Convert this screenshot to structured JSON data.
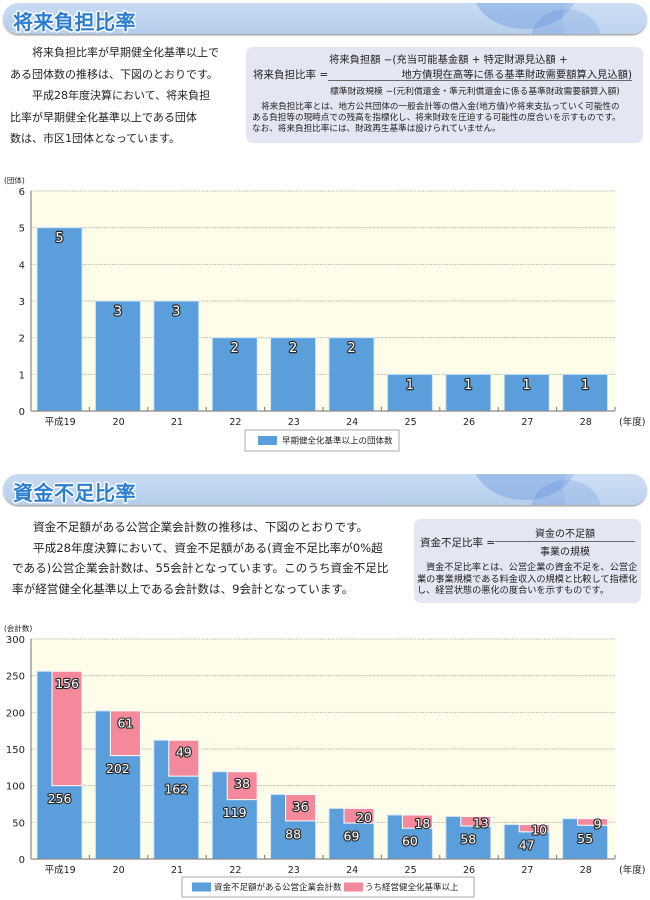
{
  "colors": {
    "title_text": "#2b7dcf",
    "band": "#bcd2ef",
    "formula_box": "#e4e6f4",
    "bar_blue": "#5a9fdb",
    "bar_pink": "#f5899c",
    "plot_bg": "#fefde9"
  },
  "sections": [
    {
      "title": "将来負担比率",
      "paragraphs": [
        {
          "lines": [
            "将来負担比率が早期健全化基準以上で",
            "ある団体数の推移は、下図のとおりです。"
          ]
        },
        {
          "lines": [
            "平成28年度決算において、将来負担",
            "比率が早期健全化基準以上である団体",
            "数は、市区1団体となっています。"
          ]
        }
      ],
      "formula": {
        "label": "将来負担比率 =",
        "numerator": [
          "将来負担額 −(充当可能基金額 + 特定財源見込額 +",
          "地方債現在高等に係る基準財政需要額算入見込額)"
        ],
        "denominator": "標準財政規模 −(元利償還金・準元利償還金に係る基準財政需要額算入額)",
        "note": [
          "将来負担比率とは、地方公共団体の一般会計等の借入金(地方債)や将来支払っていく可能性の",
          "ある負担等の現時点での残高を指標化し、将来財政を圧迫する可能性の度合いを示すものです。",
          "なお、将来負担比率には、財政再生基準は設けられていません。"
        ]
      }
    },
    {
      "title": "資金不足比率",
      "paragraphs": [
        {
          "lines": [
            "資金不足額がある公営企業会計数の推移は、下図のとおりです。"
          ]
        },
        {
          "lines": [
            "平成28年度決算において、資金不足額がある(資金不足比率が0%超",
            "である)公営企業会計数は、55会計となっています。このうち資金不足比",
            "率が経営健全化基準以上である会計数は、9会計となっています。"
          ]
        }
      ],
      "formula": {
        "label": "資金不足比率 =",
        "numerator": [
          "資金の不足額"
        ],
        "denominator": "事業の規模",
        "note": [
          "資金不足比率とは、公営企業の資金不足を、公営企",
          "業の事業規模である料金収入の規模と比較して指標化",
          "し、経営状態の悪化の度合いを示すものです。"
        ]
      }
    }
  ],
  "chart_data": [
    {
      "type": "bar",
      "title": "",
      "ylabel": "(団体)",
      "xlabel": "(年度)",
      "categories": [
        "平成19",
        "20",
        "21",
        "22",
        "23",
        "24",
        "25",
        "26",
        "27",
        "28"
      ],
      "series": [
        {
          "name": "早期健全化基準以上の団体数",
          "values": [
            5,
            3,
            3,
            2,
            2,
            2,
            1,
            1,
            1,
            1
          ]
        }
      ],
      "ylim": [
        0,
        6
      ],
      "yticks": [
        0,
        1,
        2,
        3,
        4,
        5,
        6
      ],
      "grid": true,
      "legend": "bottom-center"
    },
    {
      "type": "bar",
      "title": "",
      "ylabel": "(会計数)",
      "xlabel": "(年度)",
      "categories": [
        "平成19",
        "20",
        "21",
        "22",
        "23",
        "24",
        "25",
        "26",
        "27",
        "28"
      ],
      "series": [
        {
          "name": "資金不足額がある公営企業会計数",
          "values": [
            256,
            202,
            162,
            119,
            88,
            69,
            60,
            58,
            47,
            55
          ]
        },
        {
          "name": "うち経営健全化基準以上",
          "values": [
            156,
            61,
            49,
            38,
            36,
            20,
            18,
            13,
            10,
            9
          ]
        }
      ],
      "ylim": [
        0,
        300
      ],
      "yticks": [
        0,
        50,
        100,
        150,
        200,
        250,
        300
      ],
      "grid": true,
      "legend": "bottom-center"
    }
  ]
}
